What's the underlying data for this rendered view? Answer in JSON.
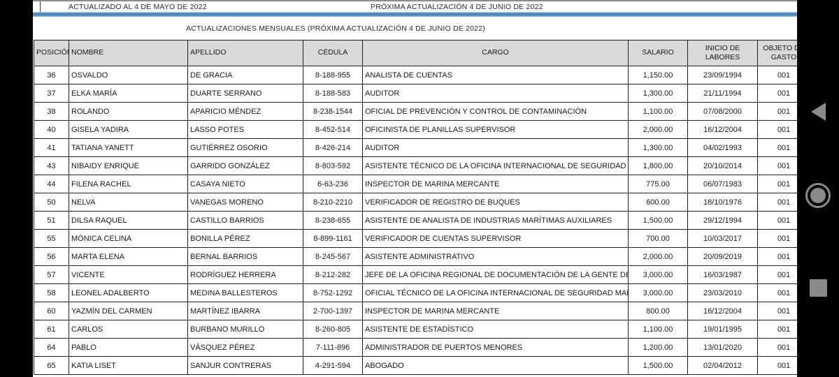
{
  "header": {
    "updated_label": "ACTUALIZADO AL 4 DE MAYO DE 2022",
    "next_update_label": "PRÓXIMA ACTUALIZACIÓN 4 DE JUNIO DE 2022",
    "subtitle": "ACTUALIZACIONES MENSUALES (PRÓXIMA ACTUALIZACIÓN 4 DE JUNIO DE 2022)"
  },
  "table": {
    "columns": [
      "POSICIÓN",
      "NOMBRE",
      "APELLIDO",
      "CÉDULA",
      "CARGO",
      "SALARIO",
      "INICIO DE LABORES",
      "OBJETO DE GASTO"
    ],
    "rows": [
      [
        "36",
        "OSVALDO",
        "DE GRACIA",
        "8-188-955",
        "ANALISTA DE CUENTAS",
        "1,150.00",
        "23/09/1994",
        "001"
      ],
      [
        "37",
        "ELKA MARÍA",
        "DUARTE SERRANO",
        "8-188-583",
        "AUDITOR",
        "1,300.00",
        "21/11/1994",
        "001"
      ],
      [
        "38",
        "ROLANDO",
        "APARICIO MÉNDEZ",
        "8-238-1544",
        "OFICIAL DE PREVENCIÓN Y CONTROL DE CONTAMINACIÓN",
        "1,100.00",
        "07/08/2000",
        "001"
      ],
      [
        "40",
        "GISELA YADIRA",
        "LASSO POTES",
        "8-452-514",
        "OFICINISTA DE PLANILLAS SUPERVISOR",
        "2,000.00",
        "16/12/2004",
        "001"
      ],
      [
        "41",
        "TATIANA YANETT",
        "GUTIÉRREZ OSORIO",
        "8-426-214",
        "AUDITOR",
        "1,300.00",
        "04/02/1993",
        "001"
      ],
      [
        "43",
        "NIBAIDY ENRIQUE",
        "GARRIDO GONZÁLEZ",
        "8-803-592",
        "ASISTENTE TÉCNICO DE LA OFICINA INTERNACIONAL DE SEGURIDAD MARÍTIMA",
        "1,800.00",
        "20/10/2014",
        "001"
      ],
      [
        "44",
        "FILENA RACHEL",
        "CASAYA NIETO",
        "6-63-236",
        "INSPECTOR DE MARINA MERCANTE",
        "775.00",
        "06/07/1983",
        "001"
      ],
      [
        "50",
        "NELVA",
        "VANEGAS MORENO",
        "8-210-2210",
        "VERIFICADOR DE REGISTRO DE BUQUES",
        "600.00",
        "18/10/1976",
        "001"
      ],
      [
        "51",
        "DILSA RAQUEL",
        "CASTILLO BARRIOS",
        "8-238-655",
        "ASISTENTE DE ANALISTA DE INDUSTRIAS MARÍTIMAS AUXILIARES",
        "1,500.00",
        "29/12/1994",
        "001"
      ],
      [
        "55",
        "MÓNICA CELINA",
        "BONILLA PÉREZ",
        "8-899-1161",
        "VERIFICADOR DE CUENTAS SUPERVISOR",
        "700.00",
        "10/03/2017",
        "001"
      ],
      [
        "56",
        "MARTA ELENA",
        "BERNAL BARRIOS",
        "8-245-567",
        "ASISTENTE ADMINISTRATIVO",
        "2,000.00",
        "20/09/2019",
        "001"
      ],
      [
        "57",
        "VICENTE",
        "RODRÍGUEZ HERRERA",
        "8-212-282",
        "JEFE DE LA OFICINA REGIONAL DE DOCUMENTACIÓN DE LA GENTE DE MAR",
        "3,000.00",
        "16/03/1987",
        "001"
      ],
      [
        "58",
        "LEONEL ADALBERTO",
        "MEDINA BALLESTEROS",
        "8-752-1292",
        "OFICIAL TÉCNICO DE LA OFICINA INTERNACIONAL DE SEGURIDAD MARÍTIMA",
        "3,000.00",
        "23/03/2010",
        "001"
      ],
      [
        "60",
        "YAZMÍN DEL CARMEN",
        "MARTÍNEZ IBARRA",
        "2-700-1397",
        "INSPECTOR DE MARINA MERCANTE",
        "800.00",
        "16/12/2004",
        "001"
      ],
      [
        "61",
        "CARLOS",
        "BURBANO MURILLO",
        "8-260-805",
        "ASISTENTE DE ESTADÍSTICO",
        "1,100.00",
        "19/01/1995",
        "001"
      ],
      [
        "64",
        "PABLO",
        "VÁSQUEZ PÉREZ",
        "7-111-896",
        "ADMINISTRADOR DE PUERTOS MENORES",
        "1,200.00",
        "13/01/2020",
        "001"
      ],
      [
        "65",
        "KATIA LISET",
        "SANJUR CONTRERAS",
        "4-291-594",
        "ABOGADO",
        "1,500.00",
        "02/04/2012",
        "001"
      ]
    ]
  },
  "navbar": {
    "back_icon": "back-triangle",
    "home_icon": "home-circle",
    "recents_icon": "recents-square"
  },
  "colors": {
    "accent_blue": "#4e86c4",
    "table_header_gray": "#d9d9d9",
    "nav_icon_gray": "#8a8a8a"
  }
}
